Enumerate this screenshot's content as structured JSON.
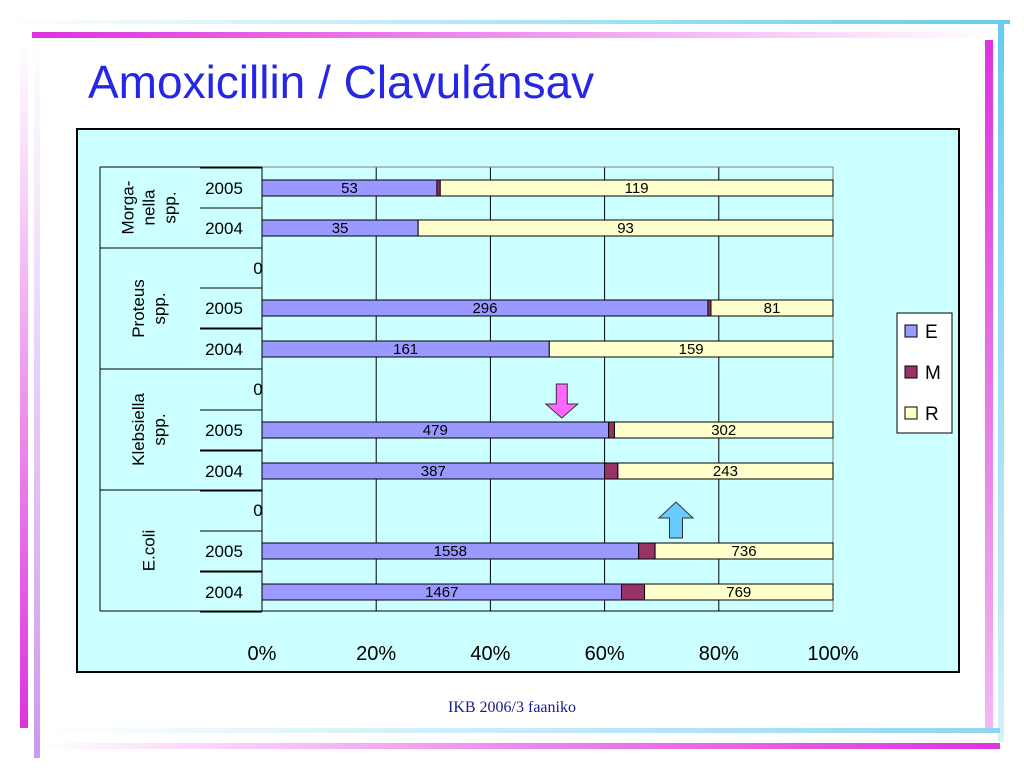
{
  "slide": {
    "title": "Amoxicillin / Clavulánsav",
    "footer": "IKB 2006/3 faaniko"
  },
  "colors": {
    "title": "#2626e6",
    "plot_background": "#ccffff",
    "E": "#9999ff",
    "M": "#993366",
    "R": "#ffffcc",
    "arrow_down": "#ff66ff",
    "arrow_up": "#66ccff",
    "deco_magenta": "#dd33dd",
    "deco_cyan": "#66ccee"
  },
  "chart_data": {
    "type": "bar",
    "orientation": "horizontal",
    "stacked": "percent",
    "xlim": [
      0,
      100
    ],
    "x_ticks": [
      "0%",
      "20%",
      "40%",
      "60%",
      "80%",
      "100%"
    ],
    "grid": true,
    "legend": {
      "position": "right",
      "entries": [
        "E",
        "M",
        "R"
      ]
    },
    "groups": [
      {
        "label": "Morga-\nnella\nspp.",
        "label_lines": [
          "Morga-",
          "nella",
          "spp."
        ],
        "rows": [
          {
            "year": "2005",
            "E": 53,
            "M": 1,
            "R": 119,
            "labels": [
              "53",
              "119"
            ]
          },
          {
            "year": "2004",
            "E": 35,
            "M": 0,
            "R": 93,
            "labels": [
              "35",
              "93"
            ]
          }
        ]
      },
      {
        "label": "Proteus\nspp.",
        "label_lines": [
          "Proteus",
          "spp."
        ],
        "zero_label": "0",
        "rows": [
          {
            "year": "2005",
            "E": 296,
            "M": 2,
            "R": 81,
            "labels": [
              "296",
              "81"
            ]
          },
          {
            "year": "2004",
            "E": 161,
            "M": 0,
            "R": 159,
            "labels": [
              "161",
              "159"
            ]
          }
        ]
      },
      {
        "label": "Klebsiella\nspp.",
        "label_lines": [
          "Klebsiella",
          "spp."
        ],
        "zero_label": "0",
        "rows": [
          {
            "year": "2005",
            "E": 479,
            "M": 8,
            "R": 302,
            "labels": [
              "479",
              "302"
            ]
          },
          {
            "year": "2004",
            "E": 387,
            "M": 15,
            "R": 243,
            "labels": [
              "387",
              "243"
            ]
          }
        ]
      },
      {
        "label": "E.coli",
        "label_lines": [
          "E.coli"
        ],
        "zero_label": "0",
        "rows": [
          {
            "year": "2005",
            "E": 1558,
            "M": 68,
            "R": 736,
            "labels": [
              "1558",
              "736"
            ]
          },
          {
            "year": "2004",
            "E": 1467,
            "M": 94,
            "R": 769,
            "labels": [
              "1467",
              "769"
            ]
          }
        ]
      }
    ],
    "annotations": [
      {
        "type": "arrow-down",
        "near": "Klebsiella spp. 2005",
        "at_percent": 52.5
      },
      {
        "type": "arrow-up",
        "near": "E.coli 2005",
        "at_percent": 72.5
      }
    ]
  }
}
